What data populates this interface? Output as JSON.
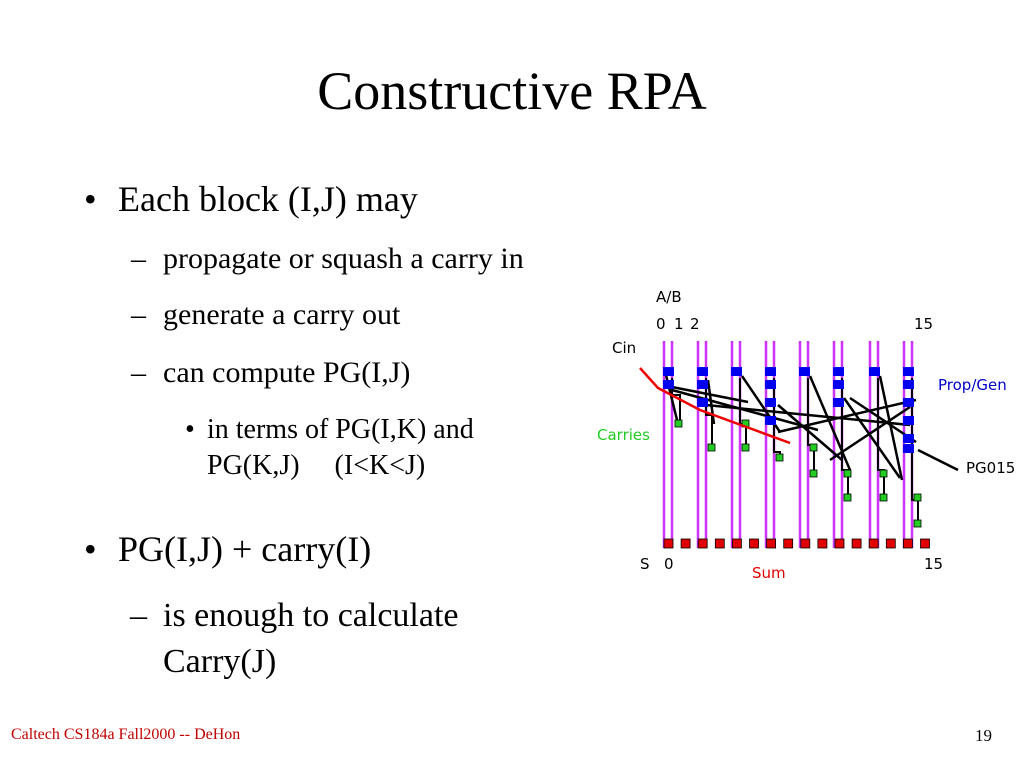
{
  "slide": {
    "title": "Constructive RPA",
    "bullets": {
      "b1": "Each block  (I,J) may",
      "b1_s1": "propagate or squash a carry in",
      "b1_s2": "generate a carry out",
      "b1_s3": "can compute PG(I,J)",
      "b1_s3_s1_line1": "in terms of PG(I,K) and",
      "b1_s3_s1_line2": "PG(K,J)     (I<K<J)",
      "b2": "PG(I,J) + carry(I)",
      "b2_s1_line1": "is enough to calculate",
      "b2_s1_line2": "Carry(J)"
    },
    "markers": {
      "dot": "•",
      "dash": "–",
      "subdot": "•"
    },
    "footer": {
      "left": "Caltech CS184a Fall2000 -- DeHon",
      "page": "19"
    }
  },
  "diagram": {
    "label_ab": "A/B",
    "label_0": "0",
    "label_1": "1",
    "label_2": "2",
    "label_15_top": "15",
    "label_cin": "Cin",
    "label_prop_gen": "Prop/Gen",
    "label_carries": "Carries",
    "label_pg015": "PG015",
    "label_s": "S",
    "label_0_bottom": "0",
    "label_15_bottom": "15",
    "label_sum": "Sum",
    "colors": {
      "wire": "#cc33ff",
      "pg_block": "#0000ee",
      "carry_block": "#22cc22",
      "sum_block": "#e00000",
      "carry_path": "#ee0000",
      "carries_label": "#22cc22",
      "prop_gen_label": "#0000cc",
      "sum_label": "#e00000",
      "footer_text": "#c00000"
    }
  }
}
